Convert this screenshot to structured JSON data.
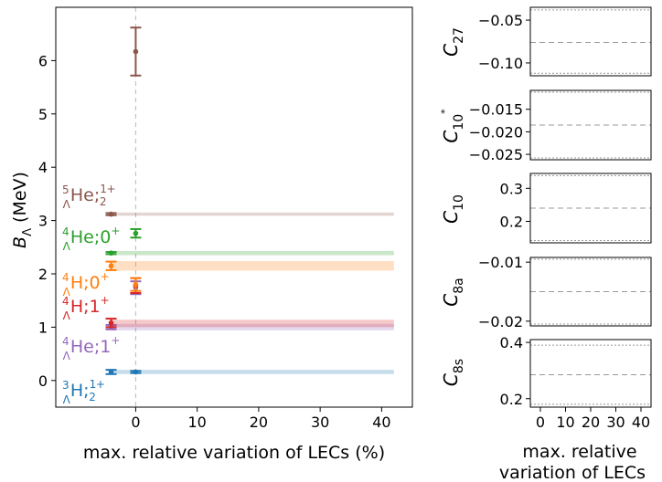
{
  "colors": {
    "nuc_3H": "#1f77b4",
    "nuc_4H0": "#ff7f0e",
    "nuc_4He0": "#2ca02c",
    "nuc_4H1": "#d62728",
    "nuc_4He1": "#9467bd",
    "nuc_5He": "#8c564b",
    "refline": "#bbbbbb",
    "dashed": "#999999",
    "dotted": "#999999"
  },
  "chart_data": [
    {
      "type": "scatter",
      "xlabel": "max. relative variation of LECs (%)",
      "ylabel": "B_Λ (MeV)",
      "xlim": [
        -13,
        45
      ],
      "ylim": [
        -0.5,
        7.0
      ],
      "xticks": [
        0,
        10,
        20,
        30,
        40
      ],
      "xtick_labels": [
        "0",
        "10",
        "20",
        "30",
        "40"
      ],
      "yticks": [
        0,
        1,
        2,
        3,
        4,
        5,
        6
      ],
      "ytick_labels": [
        "0",
        "1",
        "2",
        "3",
        "4",
        "5",
        "6"
      ],
      "series": [
        {
          "id": "3H",
          "name": "³ΛH;½⁺",
          "color": "#1f77b4",
          "label_y": -0.22,
          "left_point": {
            "x": -4,
            "y": 0.16,
            "err": 0.04
          },
          "center_point": {
            "x": 0,
            "y": 0.16,
            "err": 0.02
          },
          "band": {
            "x_range": [
              -4,
              42
            ],
            "y_range": [
              0.12,
              0.2
            ]
          }
        },
        {
          "id": "4He1",
          "name": "⁴ΛHe;1⁺",
          "color": "#9467bd",
          "label_y": 0.62,
          "left_point": {
            "x": -4,
            "y": 1.0,
            "err": 0.04
          },
          "center_point": {
            "x": 0,
            "y": 1.74,
            "err": 0.12
          },
          "band": {
            "x_range": [
              -4,
              42
            ],
            "y_range": [
              0.94,
              1.06
            ]
          }
        },
        {
          "id": "4H1",
          "name": "⁴ΛH;1⁺",
          "color": "#d62728",
          "label_y": 1.38,
          "left_point": {
            "x": -4,
            "y": 1.08,
            "err": 0.08
          },
          "center_point": {
            "x": 0,
            "y": 1.78,
            "err": 0.14
          },
          "band": {
            "x_range": [
              -4,
              42
            ],
            "y_range": [
              1.0,
              1.14
            ]
          }
        },
        {
          "id": "4H0",
          "name": "⁴ΛH;0⁺",
          "color": "#ff7f0e",
          "label_y": 1.82,
          "left_point": {
            "x": -4,
            "y": 2.15,
            "err": 0.08
          },
          "center_point": {
            "x": 0,
            "y": 1.8,
            "err": 0.12
          },
          "band": {
            "x_range": [
              -4,
              42
            ],
            "y_range": [
              2.06,
              2.24
            ]
          }
        },
        {
          "id": "4He0",
          "name": "⁴ΛHe;0⁺",
          "color": "#2ca02c",
          "label_y": 2.62,
          "left_point": {
            "x": -4,
            "y": 2.39,
            "err": 0.02
          },
          "center_point": {
            "x": 0,
            "y": 2.76,
            "err": 0.08
          },
          "band": {
            "x_range": [
              -4,
              42
            ],
            "y_range": [
              2.35,
              2.43
            ]
          }
        },
        {
          "id": "5He",
          "name": "⁵ΛHe;½⁺",
          "color": "#8c564b",
          "label_y": 3.42,
          "left_point": {
            "x": -4,
            "y": 3.12,
            "err": 0.02
          },
          "center_point": {
            "x": 0,
            "y": 6.17,
            "err": 0.45
          },
          "band": {
            "x_range": [
              -4,
              42
            ],
            "y_range": [
              3.09,
              3.15
            ]
          }
        }
      ]
    },
    {
      "type": "line",
      "ylabel": "C_27",
      "ylim": [
        -0.115,
        -0.035
      ],
      "yticks": [
        -0.05,
        -0.1
      ],
      "ytick_labels": [
        "−0.05",
        "−0.10"
      ],
      "dotted_lines": [
        -0.038,
        -0.112
      ],
      "dashed_line": -0.076
    },
    {
      "type": "line",
      "ylabel": "C_10*",
      "ylim": [
        -0.0262,
        -0.0108
      ],
      "yticks": [
        -0.015,
        -0.02,
        -0.025
      ],
      "ytick_labels": [
        "−0.015",
        "−0.020",
        "−0.025"
      ],
      "dotted_lines": [
        -0.0112,
        -0.0258
      ],
      "dashed_line": -0.0185
    },
    {
      "type": "line",
      "ylabel": "C_10",
      "ylim": [
        0.135,
        0.345
      ],
      "yticks": [
        0.3,
        0.2
      ],
      "ytick_labels": [
        "0.3",
        "0.2"
      ],
      "dotted_lines": [
        0.338,
        0.142
      ],
      "dashed_line": 0.24
    },
    {
      "type": "line",
      "ylabel": "C_8a",
      "ylim": [
        -0.0208,
        -0.0092
      ],
      "yticks": [
        -0.01,
        -0.02
      ],
      "ytick_labels": [
        "−0.01",
        "−0.02"
      ],
      "dotted_lines": [
        -0.0095,
        -0.0205
      ],
      "dashed_line": -0.015
    },
    {
      "type": "line",
      "xlabel": "max. relative variation of LECs",
      "ylabel": "C_8s",
      "ylim": [
        0.17,
        0.41
      ],
      "yticks": [
        0.4,
        0.2
      ],
      "ytick_labels": [
        "0.4",
        "0.2"
      ],
      "xticks": [
        0,
        10,
        20,
        30,
        40
      ],
      "xtick_labels": [
        "0",
        "10",
        "20",
        "30",
        "40"
      ],
      "dotted_lines": [
        0.39,
        0.18
      ],
      "dashed_line": 0.285
    }
  ],
  "labels": {
    "main_xlabel": "max. relative variation of LECs (%)",
    "main_ylabel_B": "B",
    "main_ylabel_sub": "Λ",
    "main_ylabel_unit": " (MeV)",
    "side_xlabel_line1": "max. relative",
    "side_xlabel_line2": "variation of LECs",
    "c27_main": "C",
    "c27_sub": "27",
    "c10s_main": "C",
    "c10s_sub": "10",
    "c10s_sup": "*",
    "c10_main": "C",
    "c10_sub": "10",
    "c8a_main": "C",
    "c8a_sub": "8a",
    "c8s_main": "C",
    "c8s_sub": "8s",
    "nuc_5He": {
      "pre_sup": "5",
      "pre_sub": "Λ",
      "el": "He",
      "sep": ";",
      "num": "1",
      "den": "2",
      "sign": "+"
    },
    "nuc_4He0": {
      "pre_sup": "4",
      "pre_sub": "Λ",
      "el": "He",
      "state": ";0",
      "sign": "+"
    },
    "nuc_4H0": {
      "pre_sup": "4",
      "pre_sub": "Λ",
      "el": "H",
      "state": ";0",
      "sign": "+"
    },
    "nuc_4H1": {
      "pre_sup": "4",
      "pre_sub": "Λ",
      "el": "H",
      "state": ";1",
      "sign": "+"
    },
    "nuc_4He1": {
      "pre_sup": "4",
      "pre_sub": "Λ",
      "el": "He",
      "state": ";1",
      "sign": "+"
    },
    "nuc_3H": {
      "pre_sup": "3",
      "pre_sub": "Λ",
      "el": "H",
      "sep": ";",
      "num": "1",
      "den": "2",
      "sign": "+"
    }
  }
}
